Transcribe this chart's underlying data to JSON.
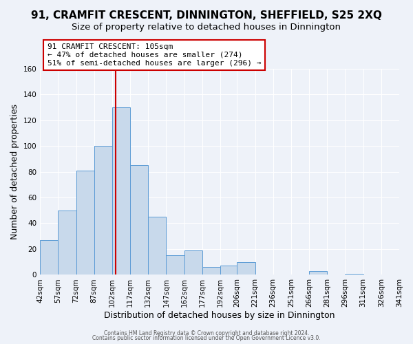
{
  "title": "91, CRAMFIT CRESCENT, DINNINGTON, SHEFFIELD, S25 2XQ",
  "subtitle": "Size of property relative to detached houses in Dinnington",
  "xlabel": "Distribution of detached houses by size in Dinnington",
  "ylabel": "Number of detached properties",
  "bin_labels": [
    "42sqm",
    "57sqm",
    "72sqm",
    "87sqm",
    "102sqm",
    "117sqm",
    "132sqm",
    "147sqm",
    "162sqm",
    "177sqm",
    "192sqm",
    "206sqm",
    "221sqm",
    "236sqm",
    "251sqm",
    "266sqm",
    "281sqm",
    "296sqm",
    "311sqm",
    "326sqm",
    "341sqm"
  ],
  "bin_edges": [
    42,
    57,
    72,
    87,
    102,
    117,
    132,
    147,
    162,
    177,
    192,
    206,
    221,
    236,
    251,
    266,
    281,
    296,
    311,
    326,
    341
  ],
  "bar_heights": [
    27,
    50,
    81,
    100,
    130,
    85,
    45,
    15,
    19,
    6,
    7,
    10,
    0,
    0,
    0,
    3,
    0,
    1,
    0,
    0
  ],
  "bar_color": "#c8d9eb",
  "bar_edge_color": "#5b9bd5",
  "vline_x": 105,
  "vline_color": "#cc0000",
  "annotation_line1": "91 CRAMFIT CRESCENT: 105sqm",
  "annotation_line2": "← 47% of detached houses are smaller (274)",
  "annotation_line3": "51% of semi-detached houses are larger (296) →",
  "annotation_box_color": "#ffffff",
  "annotation_box_edge": "#cc0000",
  "ylim": [
    0,
    160
  ],
  "yticks": [
    0,
    20,
    40,
    60,
    80,
    100,
    120,
    140,
    160
  ],
  "footer1": "Contains HM Land Registry data © Crown copyright and database right 2024.",
  "footer2": "Contains public sector information licensed under the Open Government Licence v3.0.",
  "bg_color": "#eef2f9",
  "grid_color": "#ffffff",
  "title_fontsize": 11,
  "subtitle_fontsize": 9.5,
  "xlabel_fontsize": 9,
  "ylabel_fontsize": 9,
  "tick_fontsize": 7.5,
  "annot_fontsize": 8
}
